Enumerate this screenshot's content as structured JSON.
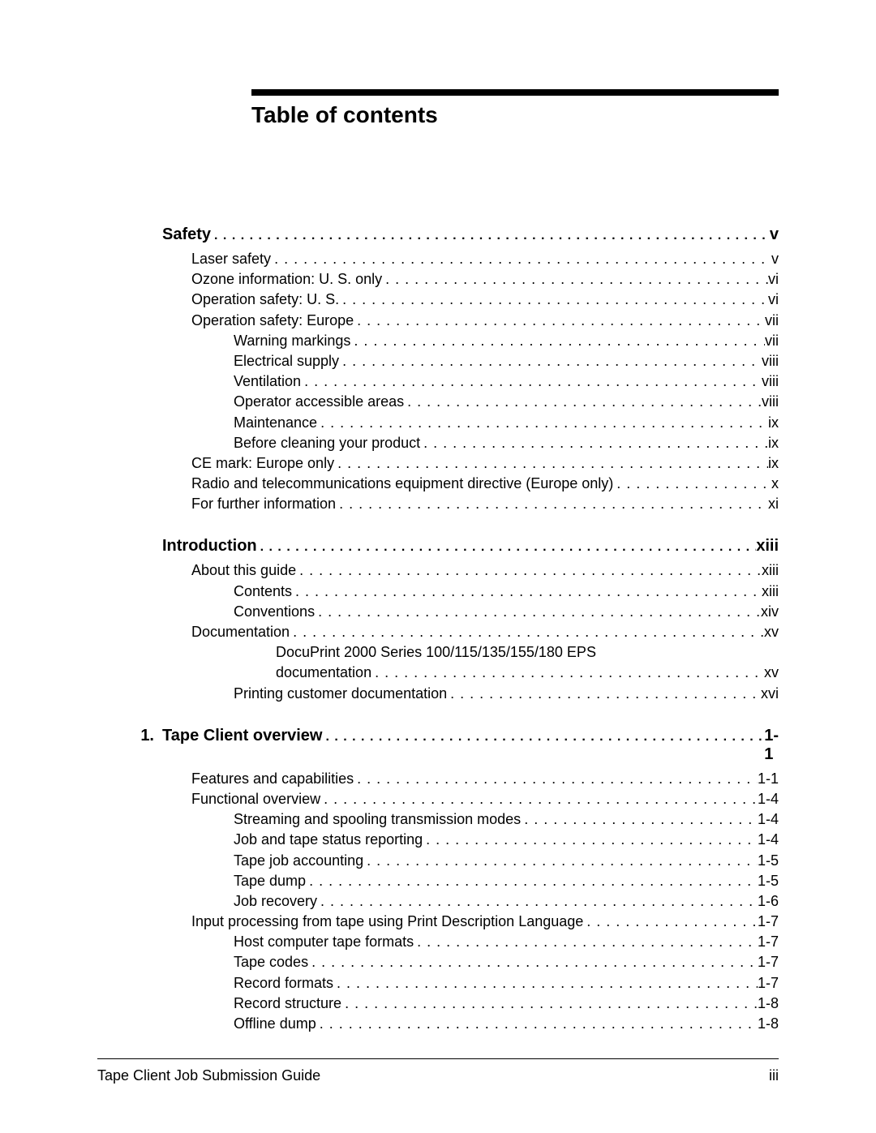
{
  "title": "Table of contents",
  "footer_left": "Tape Client Job Submission Guide",
  "footer_right": "iii",
  "sections": [
    {
      "chapter_num": "",
      "heading": "Safety",
      "heading_page": "v",
      "entries": [
        {
          "level": 1,
          "text": "Laser safety",
          "page": "v"
        },
        {
          "level": 1,
          "text": "Ozone information: U. S. only",
          "page": "vi"
        },
        {
          "level": 1,
          "text": "Operation safety: U. S.",
          "page": "vi"
        },
        {
          "level": 1,
          "text": "Operation safety: Europe",
          "page": "vii"
        },
        {
          "level": 2,
          "text": "Warning markings",
          "page": "vii"
        },
        {
          "level": 2,
          "text": "Electrical supply",
          "page": "viii"
        },
        {
          "level": 2,
          "text": "Ventilation",
          "page": "viii"
        },
        {
          "level": 2,
          "text": "Operator accessible areas",
          "page": "viii"
        },
        {
          "level": 2,
          "text": "Maintenance",
          "page": "ix"
        },
        {
          "level": 2,
          "text": "Before cleaning your product",
          "page": "ix"
        },
        {
          "level": 1,
          "text": "CE mark: Europe only",
          "page": "ix"
        },
        {
          "level": 1,
          "text": "Radio and telecommunications equipment directive (Europe only)",
          "page": "x"
        },
        {
          "level": 1,
          "text": "For further information",
          "page": "xi"
        }
      ]
    },
    {
      "chapter_num": "",
      "heading": "Introduction",
      "heading_page": "xiii",
      "entries": [
        {
          "level": 1,
          "text": "About this guide",
          "page": "xiii"
        },
        {
          "level": 2,
          "text": "Contents",
          "page": "xiii"
        },
        {
          "level": 2,
          "text": "Conventions",
          "page": "xiv"
        },
        {
          "level": 1,
          "text": "Documentation",
          "page": "xv"
        },
        {
          "level": 3,
          "text": "DocuPrint 2000 Series 100/115/135/155/180 EPS",
          "continuation": "documentation",
          "page": "xv"
        },
        {
          "level": 2,
          "text": "Printing customer documentation",
          "page": "xvi"
        }
      ]
    },
    {
      "chapter_num": "1.",
      "heading": "Tape Client overview",
      "heading_page": "1-1",
      "entries": [
        {
          "level": 1,
          "text": "Features and capabilities",
          "page": "1-1"
        },
        {
          "level": 1,
          "text": "Functional overview",
          "page": "1-4"
        },
        {
          "level": 2,
          "text": "Streaming and spooling transmission modes",
          "page": "1-4"
        },
        {
          "level": 2,
          "text": "Job and tape status reporting",
          "page": "1-4"
        },
        {
          "level": 2,
          "text": "Tape job accounting",
          "page": "1-5"
        },
        {
          "level": 2,
          "text": "Tape dump",
          "page": "1-5"
        },
        {
          "level": 2,
          "text": "Job recovery",
          "page": "1-6"
        },
        {
          "level": 1,
          "text": "Input processing from tape using Print Description Language",
          "page": "1-7"
        },
        {
          "level": 2,
          "text": "Host computer tape formats",
          "page": "1-7"
        },
        {
          "level": 2,
          "text": "Tape codes",
          "page": "1-7"
        },
        {
          "level": 2,
          "text": "Record formats",
          "page": "1-7"
        },
        {
          "level": 2,
          "text": "Record structure",
          "page": "1-8"
        },
        {
          "level": 2,
          "text": "Offline dump",
          "page": "1-8"
        }
      ]
    }
  ]
}
